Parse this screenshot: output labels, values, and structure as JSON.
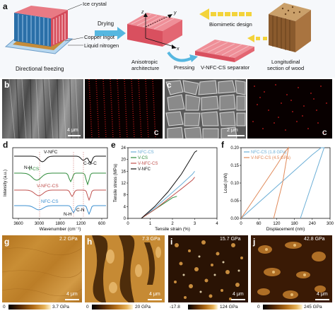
{
  "panels": {
    "a": {
      "label": "a",
      "ice_crystal": "Ice crystal",
      "copper_ingot": "Copper ingot",
      "liquid_nitrogen": "Liquid nitrogen",
      "directional_freezing": "Directional freezing",
      "drying": "Drying",
      "anisotropic": "Anisotropic",
      "architecture": "architecture",
      "pressing": "Pressing",
      "separator": "V-NFC-CS separator",
      "biomimetic": "Biomimetic design",
      "longitudinal": "Longitudinal",
      "section_wood": "section of wood",
      "axis_x": "x",
      "axis_y": "y",
      "axis_z": "z"
    },
    "b": {
      "label": "b",
      "scale": "4 μm",
      "channel": "C"
    },
    "c": {
      "label": "c",
      "scale": "2 μm",
      "channel": "C"
    },
    "g": {
      "label": "g",
      "value": "2.2 GPa",
      "scale": "4 μm",
      "cbar_min": "0",
      "cbar_max": "3.7 GPa"
    },
    "h": {
      "label": "h",
      "value": "7.3 GPa",
      "scale": "4 μm",
      "cbar_min": "0",
      "cbar_max": "20 GPa"
    },
    "i": {
      "label": "i",
      "value": "15.7 GPa",
      "scale": "4 μm",
      "cbar_min": "-17.8",
      "cbar_max": "124 GPa"
    },
    "j": {
      "label": "j",
      "value": "42.8 GPa",
      "scale": "4 μm",
      "cbar_min": "0",
      "cbar_max": "245 GPa"
    }
  },
  "chart_data": [
    {
      "panel": "d",
      "type": "line",
      "xlabel": "Wavenumber (cm⁻¹)",
      "ylabel": "Intensity (a.u.)",
      "xticks": [
        "3600",
        "3000",
        "1800",
        "1200",
        "600"
      ],
      "xlim": [
        3800,
        500
      ],
      "series": [
        {
          "name": "V-NFC",
          "color": "#111111"
        },
        {
          "name": "V-CS",
          "color": "#2e8b3a"
        },
        {
          "name": "V-NFC-CS",
          "color": "#c0504d"
        },
        {
          "name": "NFC-CS",
          "color": "#3b8fd0"
        }
      ],
      "annotations": [
        "N-H",
        "C-O-C",
        "N-H",
        "C-N"
      ]
    },
    {
      "panel": "e",
      "type": "line",
      "xlabel": "Tensile strain (%)",
      "ylabel": "Tensile stress (MPa)",
      "xlim": [
        0,
        4
      ],
      "ylim": [
        0,
        24
      ],
      "xticks": [
        "0",
        "1",
        "2",
        "3",
        "4"
      ],
      "yticks": [
        "0",
        "4",
        "8",
        "12",
        "16",
        "20",
        "24"
      ],
      "series": [
        {
          "name": "NFC-CS",
          "color": "#6baed6",
          "x": [
            0.6,
            1.2,
            1.8,
            2.4,
            2.9,
            3.0
          ],
          "y": [
            0,
            3.5,
            7.5,
            11.5,
            15,
            16
          ]
        },
        {
          "name": "V-CS",
          "color": "#2e8b3a",
          "x": [
            0.6,
            1.1,
            1.6,
            2.0,
            2.2
          ],
          "y": [
            0,
            2.5,
            5,
            7,
            7.5
          ]
        },
        {
          "name": "V-NFC-CS",
          "color": "#c0504d",
          "x": [
            0.6,
            1.2,
            1.8,
            2.4,
            2.9,
            3.0
          ],
          "y": [
            0,
            3,
            6.5,
            10,
            13,
            14
          ]
        },
        {
          "name": "V-NFC",
          "color": "#111111",
          "x": [
            0.6,
            1.2,
            1.8,
            2.4,
            2.8,
            3.0,
            3.1
          ],
          "y": [
            0,
            4,
            9,
            15,
            20,
            22.5,
            23
          ]
        }
      ]
    },
    {
      "panel": "f",
      "type": "line",
      "xlabel": "Displacement (nm)",
      "ylabel": "Load (mN)",
      "xlim": [
        0,
        300
      ],
      "ylim": [
        0,
        0.2
      ],
      "xticks": [
        "0",
        "60",
        "120",
        "180",
        "240",
        "300"
      ],
      "yticks": [
        "0.00",
        "0.05",
        "0.10",
        "0.15",
        "0.20"
      ],
      "series": [
        {
          "name": "NFC-CS (1.8 GPa)",
          "color": "#6baed6",
          "x": [
            0,
            60,
            120,
            180,
            240,
            270,
            280,
            240,
            200
          ],
          "y": [
            0,
            0.045,
            0.09,
            0.135,
            0.18,
            0.2,
            0.2,
            0.1,
            0
          ]
        },
        {
          "name": "V-NFC-CS (4.5 GPa)",
          "color": "#e08a5a",
          "x": [
            0,
            40,
            80,
            120,
            150,
            160,
            140,
            110
          ],
          "y": [
            0,
            0.05,
            0.1,
            0.15,
            0.19,
            0.2,
            0.1,
            0
          ]
        }
      ]
    }
  ]
}
